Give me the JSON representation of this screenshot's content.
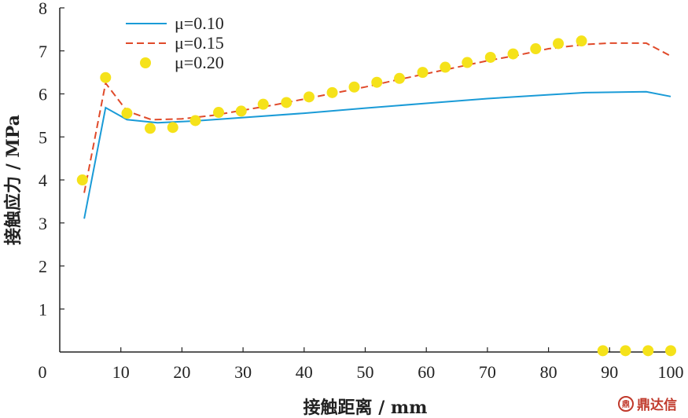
{
  "chart_data": {
    "type": "line",
    "xlabel": "接触距离 / mm",
    "ylabel": "接触应力 / MPa",
    "xlim": [
      0,
      100
    ],
    "ylim": [
      0,
      8
    ],
    "xticks": [
      0,
      10,
      20,
      30,
      40,
      50,
      60,
      70,
      80,
      90,
      100
    ],
    "yticks": [
      1,
      2,
      3,
      4,
      5,
      6,
      7,
      8
    ],
    "legend_position": "top-left",
    "grid": false,
    "series": [
      {
        "name": "μ=0.10",
        "style": "solid-line",
        "color": "#1a9bd7",
        "points": [
          [
            4,
            3.1
          ],
          [
            7.5,
            5.68
          ],
          [
            11,
            5.4
          ],
          [
            16,
            5.33
          ],
          [
            22,
            5.37
          ],
          [
            30,
            5.45
          ],
          [
            40,
            5.55
          ],
          [
            50,
            5.67
          ],
          [
            60,
            5.78
          ],
          [
            70,
            5.89
          ],
          [
            80,
            5.98
          ],
          [
            86,
            6.03
          ],
          [
            96,
            6.05
          ],
          [
            100,
            5.94
          ]
        ]
      },
      {
        "name": "μ=0.15",
        "style": "dashed-line",
        "color": "#e04a2a",
        "points": [
          [
            4,
            3.7
          ],
          [
            7.5,
            6.25
          ],
          [
            11,
            5.6
          ],
          [
            15,
            5.4
          ],
          [
            20,
            5.42
          ],
          [
            25,
            5.5
          ],
          [
            30,
            5.62
          ],
          [
            35,
            5.74
          ],
          [
            40,
            5.88
          ],
          [
            45,
            6.02
          ],
          [
            50,
            6.16
          ],
          [
            55,
            6.32
          ],
          [
            60,
            6.47
          ],
          [
            65,
            6.62
          ],
          [
            70,
            6.77
          ],
          [
            75,
            6.9
          ],
          [
            80,
            7.05
          ],
          [
            86,
            7.15
          ],
          [
            90,
            7.18
          ],
          [
            96,
            7.18
          ],
          [
            100,
            6.88
          ]
        ]
      },
      {
        "name": "μ=0.20",
        "style": "markers",
        "color": "#f5e21a",
        "points": [
          [
            3.7,
            4.0
          ],
          [
            7.5,
            6.38
          ],
          [
            11,
            5.55
          ],
          [
            14.8,
            5.2
          ],
          [
            18.5,
            5.22
          ],
          [
            22.2,
            5.38
          ],
          [
            26,
            5.57
          ],
          [
            29.7,
            5.6
          ],
          [
            33.3,
            5.76
          ],
          [
            37.1,
            5.8
          ],
          [
            40.8,
            5.93
          ],
          [
            44.6,
            6.03
          ],
          [
            48.2,
            6.16
          ],
          [
            51.9,
            6.27
          ],
          [
            55.6,
            6.36
          ],
          [
            59.4,
            6.5
          ],
          [
            63.1,
            6.62
          ],
          [
            66.7,
            6.73
          ],
          [
            70.5,
            6.85
          ],
          [
            74.2,
            6.93
          ],
          [
            77.9,
            7.05
          ],
          [
            81.6,
            7.17
          ],
          [
            85.4,
            7.23
          ],
          [
            88.9,
            0.03
          ],
          [
            92.6,
            0.03
          ],
          [
            96.3,
            0.03
          ],
          [
            100,
            0.03
          ]
        ]
      }
    ]
  },
  "watermark": {
    "logo_text": "鼎",
    "text": "鼎达信"
  }
}
